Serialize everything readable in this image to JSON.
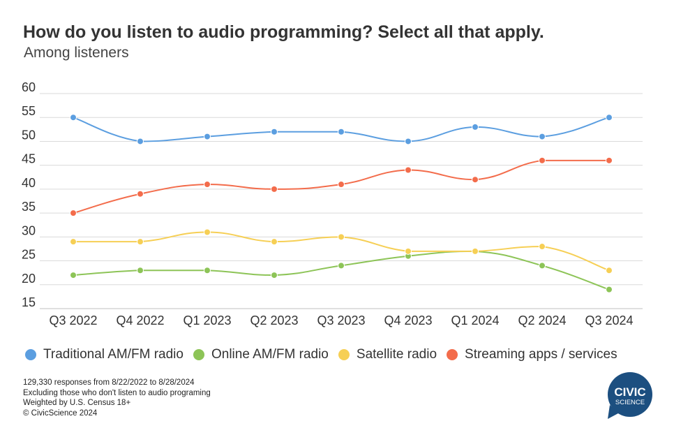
{
  "chart_data": {
    "type": "line",
    "title": "How do you listen to audio programming? Select all that apply.",
    "subtitle": "Among listeners",
    "categories": [
      "Q3 2022",
      "Q4 2022",
      "Q1 2023",
      "Q2 2023",
      "Q3 2023",
      "Q4 2023",
      "Q1 2024",
      "Q2 2024",
      "Q3 2024"
    ],
    "yticks": [
      60,
      55,
      50,
      45,
      40,
      35,
      30,
      25,
      20,
      15
    ],
    "ylim": [
      15,
      60
    ],
    "grid": "horizontal",
    "legend_position": "bottom",
    "series": [
      {
        "name": "Traditional AM/FM radio",
        "color": "#5b9ee0",
        "values": [
          55,
          50,
          51,
          52,
          52,
          50,
          53,
          51,
          55
        ]
      },
      {
        "name": "Online AM/FM radio",
        "color": "#8dc457",
        "values": [
          22,
          23,
          23,
          22,
          24,
          26,
          27,
          24,
          19
        ]
      },
      {
        "name": "Satellite radio",
        "color": "#f6cf55",
        "values": [
          29,
          29,
          31,
          29,
          30,
          27,
          27,
          28,
          23
        ]
      },
      {
        "name": "Streaming apps / services",
        "color": "#f36c4b",
        "values": [
          35,
          39,
          41,
          40,
          41,
          44,
          42,
          46,
          46
        ]
      }
    ]
  },
  "footnotes": [
    "129,330 responses from 8/22/2022 to 8/28/2024",
    "Excluding those who don't listen to audio programing",
    "Weighted by U.S. Census 18+",
    "© CivicScience 2024"
  ],
  "logo": {
    "line1": "CIVIC",
    "line2": "SCIENCE",
    "color": "#1c4f80"
  }
}
